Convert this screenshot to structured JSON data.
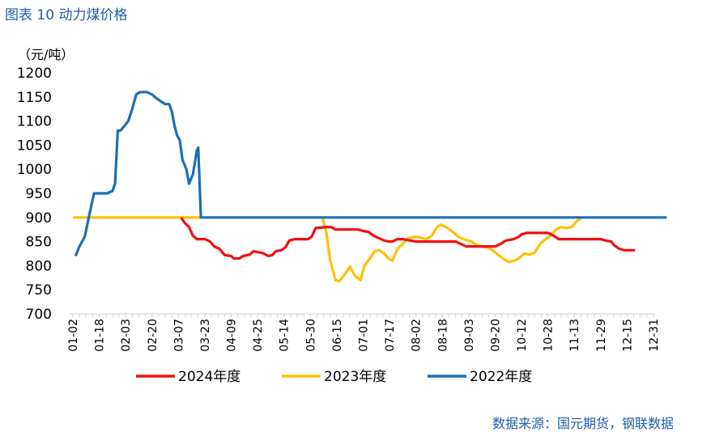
{
  "figure": {
    "title": "图表 10  动力煤价格",
    "source": "数据来源：国元期货，钢联数据"
  },
  "chart_data": {
    "type": "line",
    "unit_label": "（元/吨）",
    "ylim": [
      700,
      1200
    ],
    "yticks": [
      "1200",
      "1150",
      "1100",
      "1050",
      "1000",
      "950",
      "900",
      "850",
      "800",
      "750",
      "700"
    ],
    "xlabels": [
      "01-02",
      "01-18",
      "02-03",
      "02-20",
      "03-07",
      "03-23",
      "04-09",
      "04-25",
      "05-14",
      "05-30",
      "06-15",
      "07-01",
      "07-17",
      "08-02",
      "08-18",
      "09-03",
      "09-20",
      "10-12",
      "10-28",
      "11-13",
      "11-29",
      "12-15",
      "12-31"
    ],
    "legend_position": "bottom",
    "series": [
      {
        "name": "2024年度",
        "color": "#ee1111",
        "points": [
          [
            4.1,
            900
          ],
          [
            4.25,
            888
          ],
          [
            4.4,
            880
          ],
          [
            4.55,
            862
          ],
          [
            4.7,
            855
          ],
          [
            5.0,
            855
          ],
          [
            5.2,
            850
          ],
          [
            5.35,
            840
          ],
          [
            5.55,
            835
          ],
          [
            5.75,
            822
          ],
          [
            6.0,
            820
          ],
          [
            6.1,
            815
          ],
          [
            6.3,
            815
          ],
          [
            6.45,
            820
          ],
          [
            6.7,
            823
          ],
          [
            6.85,
            830
          ],
          [
            7.0,
            828
          ],
          [
            7.2,
            826
          ],
          [
            7.4,
            820
          ],
          [
            7.55,
            822
          ],
          [
            7.7,
            830
          ],
          [
            7.9,
            832
          ],
          [
            8.05,
            838
          ],
          [
            8.2,
            852
          ],
          [
            8.4,
            855
          ],
          [
            8.9,
            855
          ],
          [
            9.05,
            860
          ],
          [
            9.2,
            878
          ],
          [
            9.6,
            880
          ],
          [
            9.8,
            880
          ],
          [
            9.95,
            875
          ],
          [
            10.2,
            875
          ],
          [
            10.8,
            875
          ],
          [
            11.0,
            872
          ],
          [
            11.2,
            870
          ],
          [
            11.4,
            862
          ],
          [
            11.6,
            857
          ],
          [
            11.8,
            852
          ],
          [
            12.0,
            850
          ],
          [
            12.1,
            850
          ],
          [
            12.3,
            855
          ],
          [
            12.5,
            855
          ],
          [
            12.8,
            852
          ],
          [
            13.0,
            850
          ],
          [
            14.5,
            850
          ],
          [
            14.7,
            845
          ],
          [
            14.9,
            840
          ],
          [
            15.1,
            840
          ],
          [
            16.0,
            840
          ],
          [
            16.2,
            845
          ],
          [
            16.4,
            852
          ],
          [
            16.7,
            855
          ],
          [
            16.9,
            860
          ],
          [
            17.0,
            865
          ],
          [
            17.2,
            868
          ],
          [
            17.7,
            868
          ],
          [
            18.0,
            868
          ],
          [
            18.2,
            863
          ],
          [
            18.4,
            855
          ],
          [
            18.6,
            855
          ],
          [
            20.0,
            855
          ],
          [
            20.2,
            852
          ],
          [
            20.4,
            850
          ],
          [
            20.5,
            843
          ],
          [
            20.7,
            835
          ],
          [
            20.9,
            832
          ],
          [
            21.3,
            832
          ]
        ]
      },
      {
        "name": "2023年度",
        "color": "#ffc000",
        "points": [
          [
            0,
            900
          ],
          [
            3.0,
            900
          ],
          [
            9.45,
            900
          ],
          [
            9.6,
            870
          ],
          [
            9.75,
            810
          ],
          [
            9.95,
            770
          ],
          [
            10.1,
            768
          ],
          [
            10.3,
            782
          ],
          [
            10.5,
            798
          ],
          [
            10.7,
            778
          ],
          [
            10.9,
            770
          ],
          [
            11.05,
            800
          ],
          [
            11.25,
            815
          ],
          [
            11.45,
            830
          ],
          [
            11.6,
            832
          ],
          [
            11.8,
            825
          ],
          [
            11.95,
            815
          ],
          [
            12.1,
            810
          ],
          [
            12.3,
            835
          ],
          [
            12.5,
            845
          ],
          [
            12.7,
            857
          ],
          [
            13.0,
            860
          ],
          [
            13.2,
            858
          ],
          [
            13.4,
            855
          ],
          [
            13.6,
            862
          ],
          [
            13.8,
            880
          ],
          [
            13.95,
            885
          ],
          [
            14.2,
            878
          ],
          [
            14.4,
            870
          ],
          [
            14.6,
            860
          ],
          [
            14.8,
            855
          ],
          [
            15.1,
            850
          ],
          [
            15.3,
            843
          ],
          [
            15.5,
            840
          ],
          [
            15.7,
            838
          ],
          [
            15.9,
            832
          ],
          [
            16.1,
            823
          ],
          [
            16.3,
            815
          ],
          [
            16.5,
            808
          ],
          [
            16.7,
            810
          ],
          [
            16.9,
            815
          ],
          [
            17.1,
            825
          ],
          [
            17.3,
            823
          ],
          [
            17.5,
            827
          ],
          [
            17.7,
            845
          ],
          [
            17.9,
            855
          ],
          [
            18.1,
            862
          ],
          [
            18.3,
            875
          ],
          [
            18.5,
            880
          ],
          [
            18.7,
            878
          ],
          [
            18.9,
            880
          ],
          [
            19.1,
            893
          ],
          [
            19.3,
            900
          ]
        ]
      },
      {
        "name": "2022年度",
        "color": "#1c6fb5",
        "points": [
          [
            0.1,
            820
          ],
          [
            0.25,
            840
          ],
          [
            0.45,
            860
          ],
          [
            0.6,
            900
          ],
          [
            0.8,
            950
          ],
          [
            1.0,
            950
          ],
          [
            1.3,
            950
          ],
          [
            1.5,
            955
          ],
          [
            1.6,
            970
          ],
          [
            1.7,
            1080
          ],
          [
            1.8,
            1080
          ],
          [
            1.95,
            1090
          ],
          [
            2.1,
            1100
          ],
          [
            2.25,
            1125
          ],
          [
            2.4,
            1155
          ],
          [
            2.55,
            1160
          ],
          [
            2.8,
            1160
          ],
          [
            3.0,
            1155
          ],
          [
            3.15,
            1148
          ],
          [
            3.35,
            1140
          ],
          [
            3.5,
            1135
          ],
          [
            3.65,
            1135
          ],
          [
            3.75,
            1120
          ],
          [
            3.85,
            1090
          ],
          [
            3.95,
            1070
          ],
          [
            4.05,
            1060
          ],
          [
            4.15,
            1020
          ],
          [
            4.3,
            1000
          ],
          [
            4.4,
            970
          ],
          [
            4.55,
            990
          ],
          [
            4.7,
            1040
          ],
          [
            4.75,
            1045
          ],
          [
            4.85,
            900
          ],
          [
            22.5,
            900
          ]
        ]
      }
    ]
  }
}
